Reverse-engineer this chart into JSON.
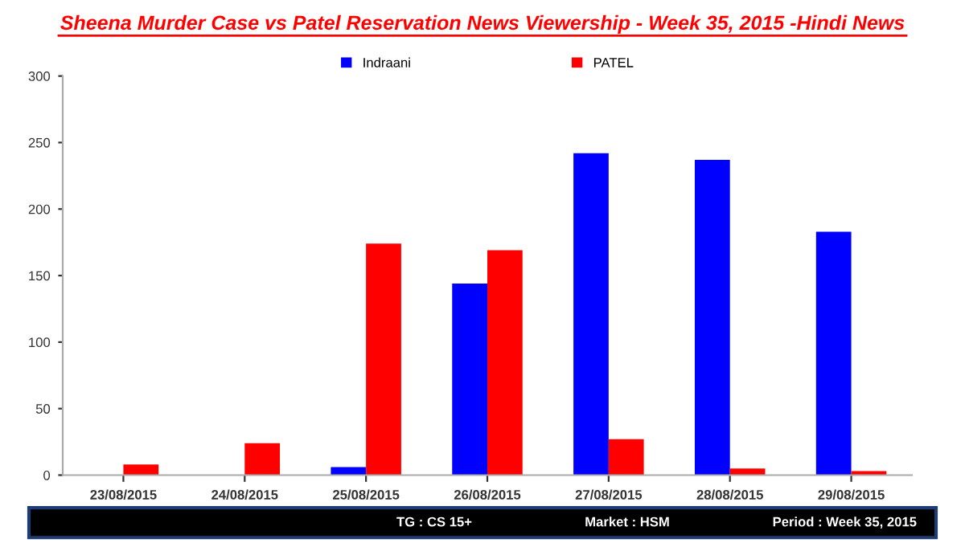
{
  "chart_data": {
    "type": "bar",
    "title": "Sheena Murder Case vs Patel Reservation News Viewership - Week 35, 2015 -Hindi News",
    "categories": [
      "23/08/2015",
      "24/08/2015",
      "25/08/2015",
      "26/08/2015",
      "27/08/2015",
      "28/08/2015",
      "29/08/2015"
    ],
    "series": [
      {
        "name": "Indraani",
        "color": "#0000ff",
        "values": [
          0,
          0,
          6,
          144,
          242,
          237,
          183
        ]
      },
      {
        "name": "PATEL",
        "color": "#ff0000",
        "values": [
          8,
          24,
          174,
          169,
          27,
          5,
          3
        ]
      }
    ],
    "ylim": [
      0,
      300
    ],
    "yticks": [
      0,
      50,
      100,
      150,
      200,
      250,
      300
    ],
    "grid": false,
    "legend": "top",
    "annotations": [
      "TG : CS 15+",
      "Market : HSM",
      "Period : Week 35, 2015"
    ]
  }
}
